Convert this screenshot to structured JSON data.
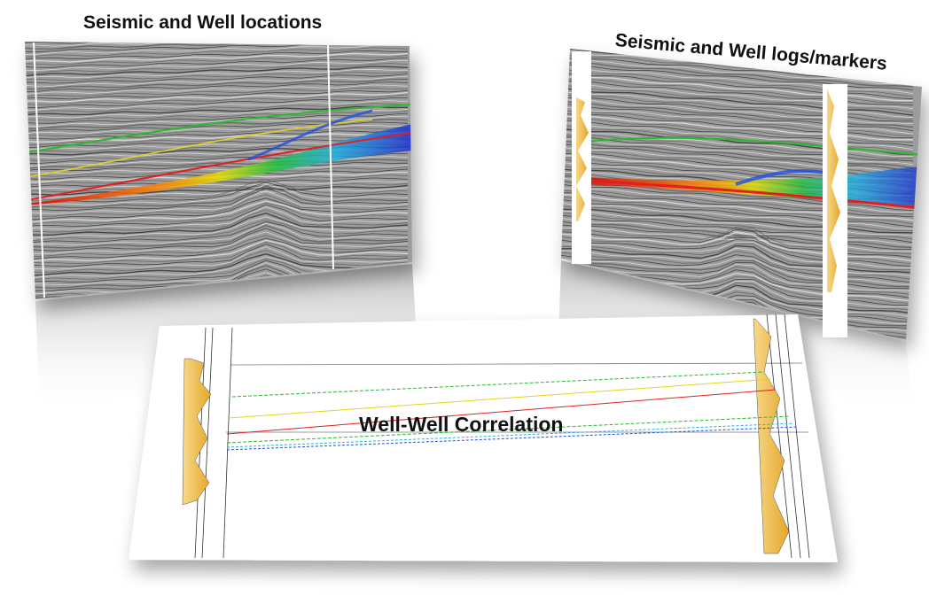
{
  "titles": {
    "seismic_wells": "Seismic and Well locations",
    "seismic_logs": "Seismic and Well logs/markers",
    "correlation": "Well-Well Correlation"
  },
  "colors": {
    "marker_green": "#2db82d",
    "marker_yellow": "#e6d21e",
    "marker_red": "#e02020",
    "marker_cyan": "#22b5d8",
    "marker_blue": "#2050e0",
    "log_fill": "#e9b13a",
    "seismic_bg": "#9a9a9a"
  },
  "panels": [
    {
      "name": "seismic-well-locations",
      "description_label": "Seismic and Well locations"
    },
    {
      "name": "seismic-well-logs-markers",
      "description_label": "Seismic and Well logs/markers"
    },
    {
      "name": "well-well-correlation",
      "description_label": "Well-Well Correlation"
    }
  ]
}
